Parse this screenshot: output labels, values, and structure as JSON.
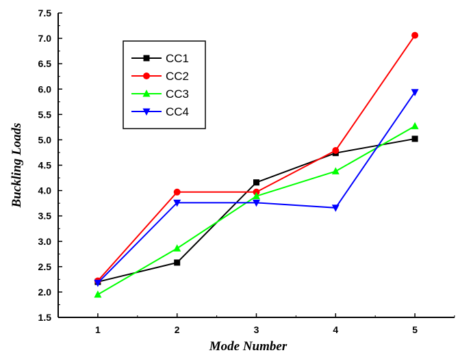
{
  "chart_data": {
    "type": "line",
    "title": "",
    "xlabel": "Mode Number",
    "ylabel": "Buckling Loads",
    "x": [
      1,
      2,
      3,
      4,
      5
    ],
    "x_ticks": [
      "1",
      "2",
      "3",
      "4",
      "5"
    ],
    "xlim": [
      0.5,
      5.5
    ],
    "ylim": [
      1.5,
      7.5
    ],
    "y_ticks": [
      "1.5",
      "2.0",
      "2.5",
      "3.0",
      "3.5",
      "4.0",
      "4.5",
      "5.0",
      "5.5",
      "6.0",
      "6.5",
      "7.0",
      "7.5"
    ],
    "grid": false,
    "legend_position": "upper-left",
    "series": [
      {
        "name": "CC1",
        "color": "#000000",
        "marker": "square",
        "values": [
          2.2,
          2.58,
          4.16,
          4.74,
          5.02
        ]
      },
      {
        "name": "CC2",
        "color": "#ff0000",
        "marker": "circle",
        "values": [
          2.22,
          3.97,
          3.97,
          4.79,
          7.06
        ]
      },
      {
        "name": "CC3",
        "color": "#00ff00",
        "marker": "triangle-up",
        "values": [
          1.95,
          2.86,
          3.89,
          4.38,
          5.27
        ]
      },
      {
        "name": "CC4",
        "color": "#0000ff",
        "marker": "triangle-down",
        "values": [
          2.18,
          3.76,
          3.76,
          3.66,
          5.94
        ]
      }
    ]
  }
}
